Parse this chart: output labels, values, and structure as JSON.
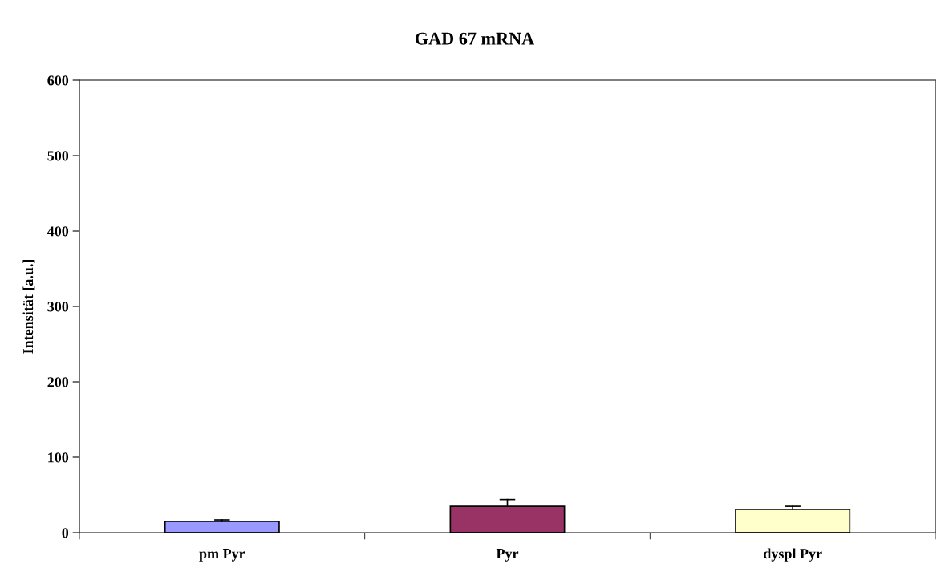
{
  "chart_data": {
    "type": "bar",
    "title": "GAD 67 mRNA",
    "ylabel": "Intensität [a.u.]",
    "categories": [
      "pm Pyr",
      "Pyr",
      "dyspl Pyr"
    ],
    "values": [
      15,
      35,
      31
    ],
    "colors": [
      "#9999ff",
      "#993366",
      "#ffffcc"
    ],
    "errors": [
      [
        15,
        17
      ],
      [
        35,
        44
      ],
      [
        31,
        35
      ]
    ],
    "ylim": [
      0,
      600
    ],
    "yticks": [
      0,
      100,
      200,
      300,
      400,
      500,
      600
    ],
    "grid": false,
    "legend": false
  }
}
